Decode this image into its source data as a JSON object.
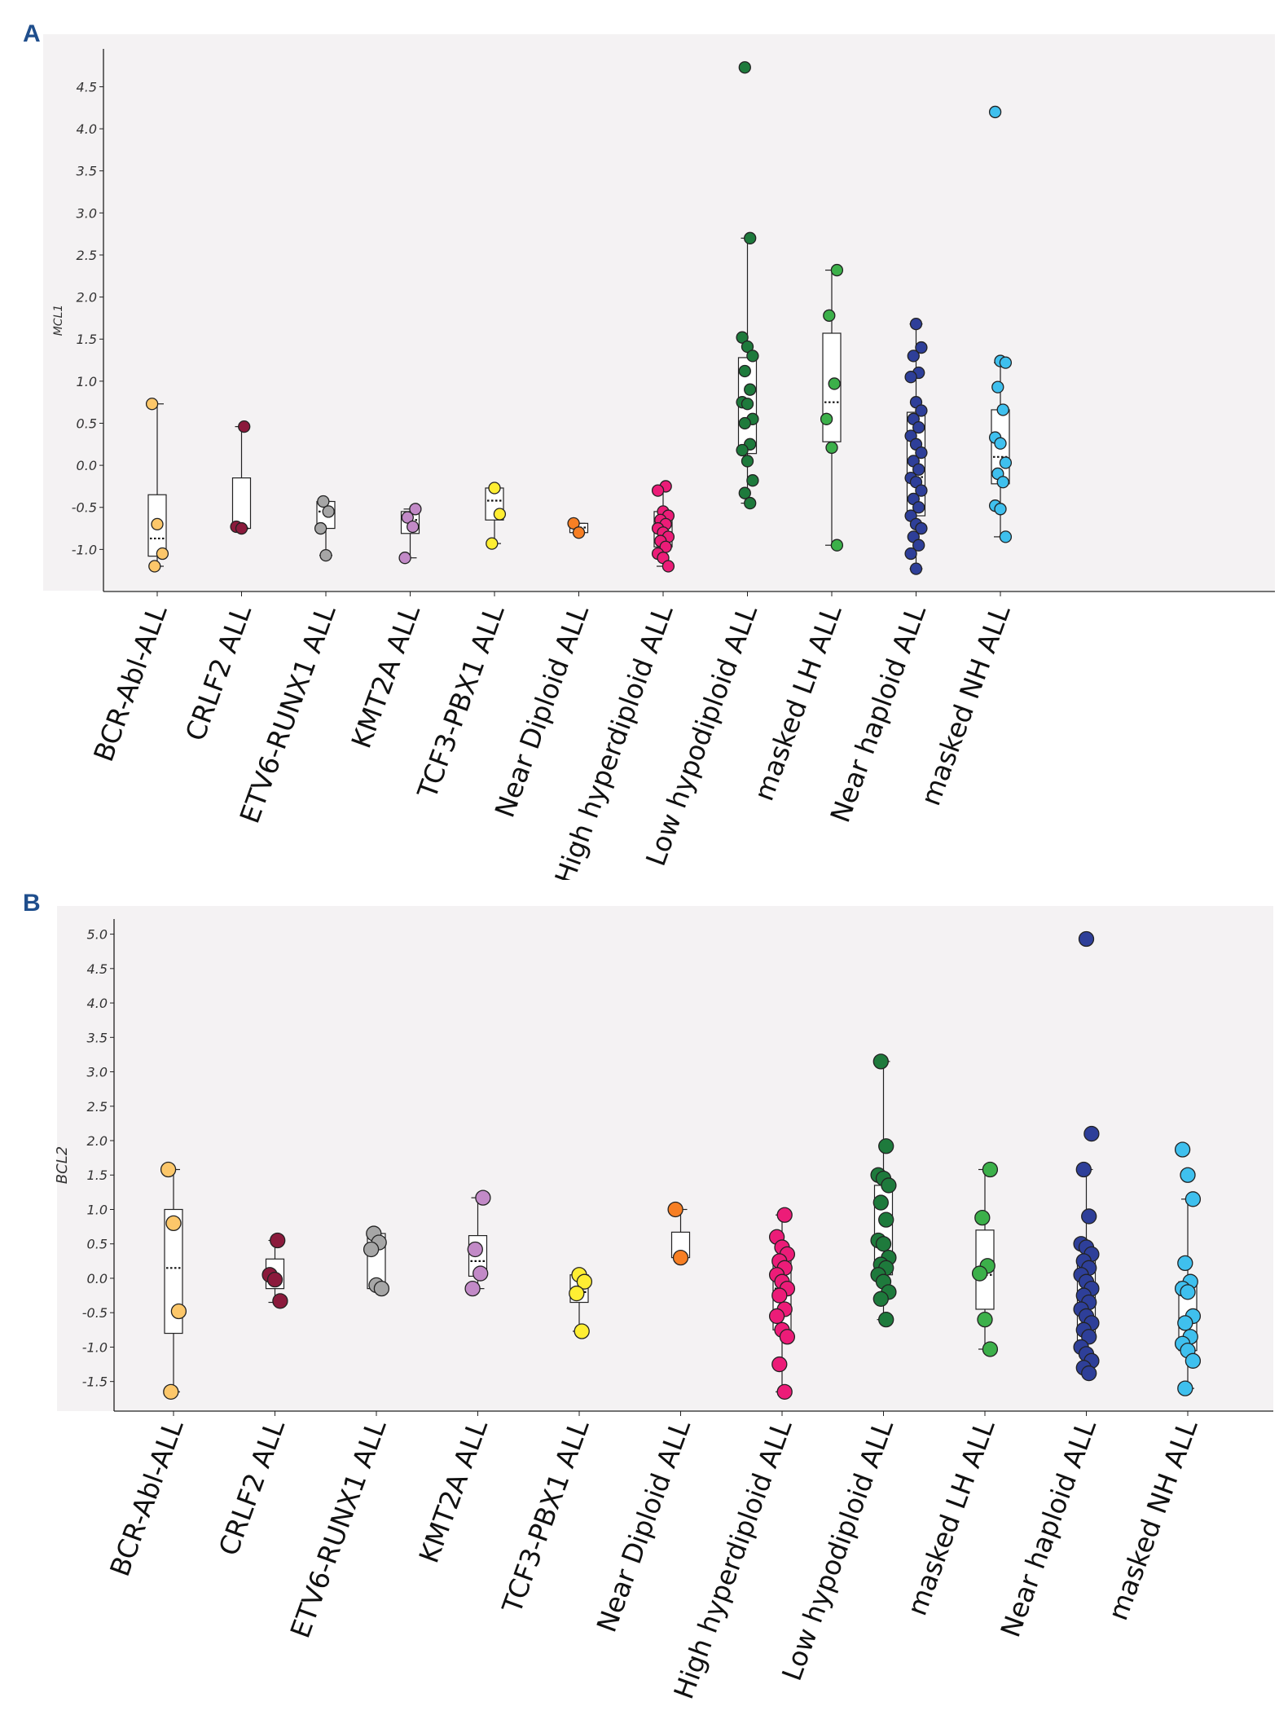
{
  "chart_data": [
    {
      "panel": "A",
      "type": "box+scatter",
      "ylabel": "MCL1",
      "ylim": [
        -1.5,
        4.95
      ],
      "yticks": [
        "-1.0",
        "-0.5",
        "0.0",
        "0.5",
        "1.0",
        "1.5",
        "2.0",
        "2.5",
        "3.0",
        "3.5",
        "4.0",
        "4.5"
      ],
      "grid": false,
      "categories": [
        {
          "label": "BCR-Abl-ALL",
          "color": "#fcc76a",
          "box": {
            "min": -1.2,
            "q1": -1.08,
            "median": -0.87,
            "q3": -0.35,
            "max": 0.73
          },
          "points": [
            0.73,
            -0.7,
            -1.05,
            -1.2
          ]
        },
        {
          "label": "CRLF2 ALL",
          "color": "#8b1a3c",
          "box": {
            "min": -0.75,
            "q1": -0.75,
            "median": -0.75,
            "q3": -0.15,
            "max": 0.46
          },
          "points": [
            0.46,
            -0.73,
            -0.75
          ]
        },
        {
          "label": "ETV6-RUNX1 ALL",
          "color": "#a6a6a6",
          "box": {
            "min": -1.07,
            "q1": -0.75,
            "median": -0.55,
            "q3": -0.43,
            "max": -0.43
          },
          "points": [
            -0.43,
            -0.55,
            -0.75,
            -1.07
          ]
        },
        {
          "label": "KMT2A ALL",
          "color": "#c28ac7",
          "box": {
            "min": -1.1,
            "q1": -0.81,
            "median": -0.65,
            "q3": -0.55,
            "max": -0.52
          },
          "points": [
            -0.52,
            -0.62,
            -0.73,
            -1.1
          ]
        },
        {
          "label": "TCF3-PBX1 ALL",
          "color": "#ffee33",
          "box": {
            "min": -0.93,
            "q1": -0.65,
            "median": -0.42,
            "q3": -0.27,
            "max": -0.27
          },
          "points": [
            -0.27,
            -0.58,
            -0.93
          ]
        },
        {
          "label": "Near Diploid ALL",
          "color": "#f77f24",
          "box": {
            "min": -0.8,
            "q1": -0.8,
            "median": -0.74,
            "q3": -0.69,
            "max": -0.69
          },
          "points": [
            -0.69,
            -0.8
          ]
        },
        {
          "label": "High hyperdiploid ALL",
          "color": "#ec1c78",
          "box": {
            "min": -1.2,
            "q1": -0.97,
            "median": -0.75,
            "q3": -0.55,
            "max": -0.25
          },
          "points": [
            -0.25,
            -0.3,
            -0.55,
            -0.6,
            -0.65,
            -0.7,
            -0.75,
            -0.8,
            -0.85,
            -0.9,
            -0.97,
            -1.05,
            -1.1,
            -1.2
          ]
        },
        {
          "label": "Low hypodiploid ALL",
          "color": "#1e7a3c",
          "box": {
            "min": -0.45,
            "q1": 0.14,
            "median": 0.52,
            "q3": 1.28,
            "max": 2.7
          },
          "points": [
            4.73,
            2.7,
            1.52,
            1.41,
            1.3,
            1.12,
            0.9,
            0.75,
            0.73,
            0.55,
            0.5,
            0.25,
            0.18,
            0.05,
            -0.18,
            -0.33,
            -0.45
          ]
        },
        {
          "label": "masked LH ALL",
          "color": "#3cb04a",
          "box": {
            "min": -0.95,
            "q1": 0.28,
            "median": 0.75,
            "q3": 1.57,
            "max": 2.32
          },
          "points": [
            2.32,
            1.78,
            0.97,
            0.55,
            0.21,
            -0.95
          ]
        },
        {
          "label": "Near haploid ALL",
          "color": "#2e3f99",
          "box": {
            "min": -1.23,
            "q1": -0.6,
            "median": -0.14,
            "q3": 0.63,
            "max": 1.68
          },
          "points": [
            1.68,
            1.4,
            1.3,
            1.1,
            1.05,
            0.75,
            0.65,
            0.55,
            0.45,
            0.35,
            0.25,
            0.15,
            0.05,
            -0.05,
            -0.15,
            -0.2,
            -0.3,
            -0.4,
            -0.5,
            -0.6,
            -0.7,
            -0.75,
            -0.85,
            -0.95,
            -1.05,
            -1.23
          ]
        },
        {
          "label": "masked NH ALL",
          "color": "#3fc0ee",
          "box": {
            "min": -0.85,
            "q1": -0.22,
            "median": 0.1,
            "q3": 0.66,
            "max": 1.22
          },
          "points": [
            4.2,
            1.24,
            1.22,
            0.93,
            0.66,
            0.33,
            0.26,
            0.03,
            -0.1,
            -0.2,
            -0.48,
            -0.52,
            -0.85
          ]
        }
      ]
    },
    {
      "panel": "B",
      "type": "box+scatter",
      "ylabel": "BCL2",
      "ylim": [
        -1.93,
        5.22
      ],
      "yticks": [
        "-1.5",
        "-1.0",
        "-0.5",
        "0.0",
        "0.5",
        "1.0",
        "1.5",
        "2.0",
        "2.5",
        "3.0",
        "3.5",
        "4.0",
        "4.5",
        "5.0"
      ],
      "grid": false,
      "categories": [
        {
          "label": "BCR-Abl-ALL",
          "color": "#fcc76a",
          "box": {
            "min": -1.65,
            "q1": -0.8,
            "median": 0.15,
            "q3": 1.0,
            "max": 1.58
          },
          "points": [
            1.58,
            0.8,
            -0.48,
            -1.65
          ]
        },
        {
          "label": "CRLF2 ALL",
          "color": "#8b1a3c",
          "box": {
            "min": -0.35,
            "q1": -0.15,
            "median": 0.02,
            "q3": 0.28,
            "max": 0.55
          },
          "points": [
            0.55,
            0.05,
            -0.02,
            -0.33
          ]
        },
        {
          "label": "ETV6-RUNX1 ALL",
          "color": "#a6a6a6",
          "box": {
            "min": -0.15,
            "q1": -0.15,
            "median": 0.45,
            "q3": 0.65,
            "max": 0.65
          },
          "points": [
            0.65,
            0.52,
            0.42,
            -0.1,
            -0.15
          ]
        },
        {
          "label": "KMT2A ALL",
          "color": "#c28ac7",
          "box": {
            "min": -0.15,
            "q1": 0.03,
            "median": 0.25,
            "q3": 0.62,
            "max": 1.17
          },
          "points": [
            1.17,
            0.42,
            0.07,
            -0.15
          ]
        },
        {
          "label": "TCF3-PBX1 ALL",
          "color": "#ffee33",
          "box": {
            "min": -0.77,
            "q1": -0.35,
            "median": -0.2,
            "q3": 0.05,
            "max": 0.05
          },
          "points": [
            0.05,
            -0.05,
            -0.22,
            -0.77
          ]
        },
        {
          "label": "Near Diploid ALL",
          "color": "#f77f24",
          "box": {
            "min": 0.3,
            "q1": 0.3,
            "median": 0.3,
            "q3": 0.67,
            "max": 1.0
          },
          "points": [
            1.0,
            0.3
          ]
        },
        {
          "label": "High hyperdiploid ALL",
          "color": "#ec1c78",
          "box": {
            "min": -1.65,
            "q1": -0.75,
            "median": -0.15,
            "q3": 0.25,
            "max": 0.92
          },
          "points": [
            0.92,
            0.6,
            0.45,
            0.35,
            0.25,
            0.15,
            0.05,
            -0.05,
            -0.15,
            -0.25,
            -0.45,
            -0.55,
            -0.75,
            -0.85,
            -1.25,
            -1.65
          ]
        },
        {
          "label": "Low hypodiploid ALL",
          "color": "#1e7a3c",
          "box": {
            "min": -0.6,
            "q1": 0.05,
            "median": 0.55,
            "q3": 1.35,
            "max": 3.15
          },
          "points": [
            3.15,
            1.92,
            1.5,
            1.45,
            1.35,
            1.1,
            0.85,
            0.55,
            0.5,
            0.3,
            0.2,
            0.15,
            0.05,
            -0.05,
            -0.2,
            -0.3,
            -0.6
          ]
        },
        {
          "label": "masked LH ALL",
          "color": "#3cb04a",
          "box": {
            "min": -1.03,
            "q1": -0.45,
            "median": 0.05,
            "q3": 0.7,
            "max": 1.58
          },
          "points": [
            1.58,
            0.88,
            0.18,
            0.07,
            -0.6,
            -1.03
          ]
        },
        {
          "label": "Near haploid ALL",
          "color": "#2e3f99",
          "box": {
            "min": -1.38,
            "q1": -0.9,
            "median": -0.3,
            "q3": 0.3,
            "max": 1.58
          },
          "points": [
            4.93,
            2.1,
            1.58,
            0.9,
            0.5,
            0.45,
            0.35,
            0.25,
            0.15,
            0.05,
            -0.05,
            -0.15,
            -0.25,
            -0.35,
            -0.45,
            -0.55,
            -0.65,
            -0.75,
            -0.85,
            -1.0,
            -1.1,
            -1.2,
            -1.3,
            -1.38
          ]
        },
        {
          "label": "masked NH ALL",
          "color": "#3fc0ee",
          "box": {
            "min": -1.6,
            "q1": -1.05,
            "median": -0.65,
            "q3": -0.05,
            "max": 1.15
          },
          "points": [
            1.87,
            1.5,
            1.15,
            0.22,
            -0.05,
            -0.15,
            -0.2,
            -0.55,
            -0.65,
            -0.85,
            -0.95,
            -1.05,
            -1.2,
            -1.6
          ]
        }
      ]
    }
  ],
  "panels": {
    "a_label": "A",
    "b_label": "B"
  }
}
